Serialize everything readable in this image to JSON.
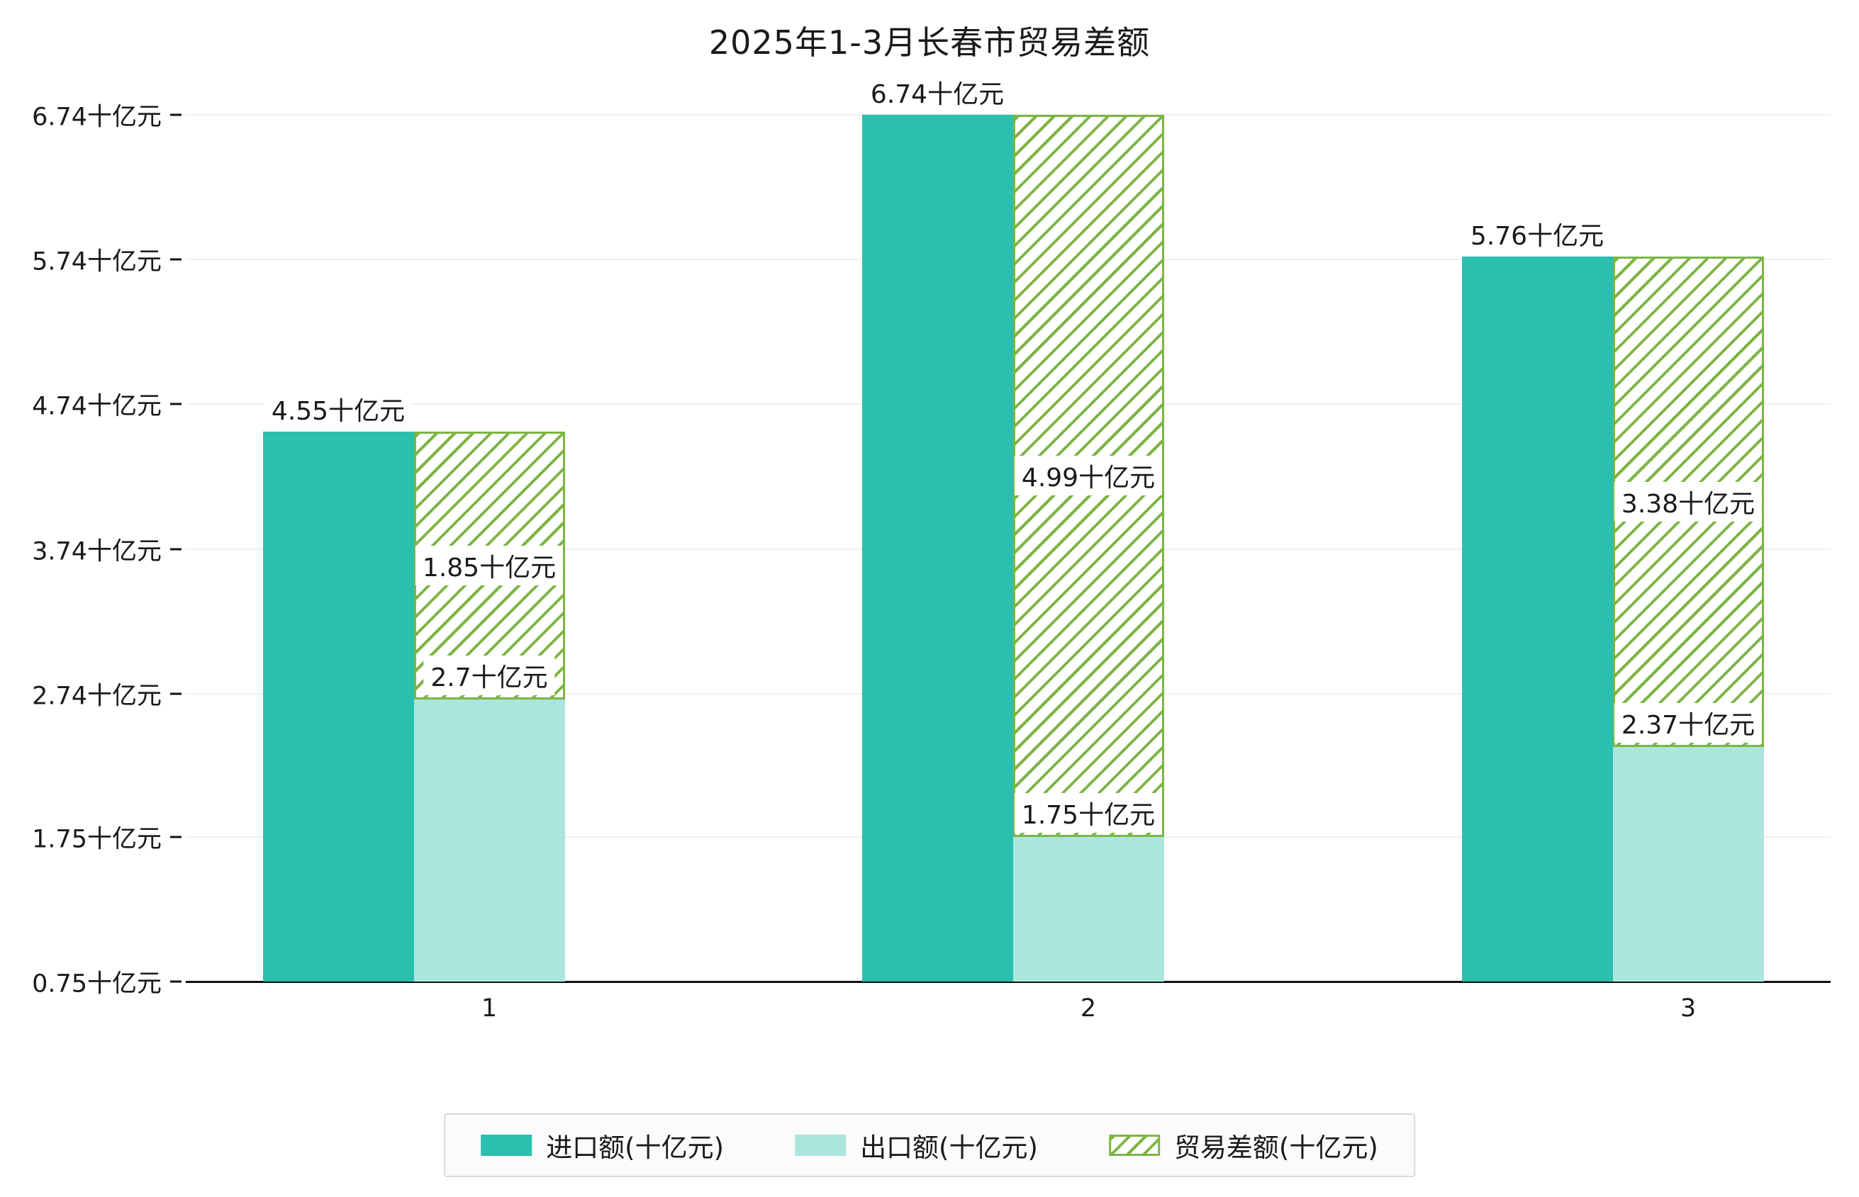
{
  "chart_data": {
    "type": "bar",
    "title": "2025年1-3月长春市贸易差额",
    "categories": [
      "1",
      "2",
      "3"
    ],
    "series": [
      {
        "name": "进口额(十亿元)",
        "values": [
          4.55,
          6.74,
          5.76
        ],
        "color": "#2bbfae"
      },
      {
        "name": "出口额(十亿元)",
        "values": [
          2.7,
          1.75,
          2.37
        ],
        "color": "#abe6dc"
      },
      {
        "name": "贸易差额(十亿元)",
        "values": [
          1.85,
          4.99,
          3.38
        ],
        "color": "#7cb544",
        "style": "hatched",
        "stacked_on": "出口额(十亿元)"
      }
    ],
    "value_labels": {
      "import": [
        "4.55十亿元",
        "6.74十亿元",
        "5.76十亿元"
      ],
      "export": [
        "2.7十亿元",
        "1.75十亿元",
        "2.37十亿元"
      ],
      "balance": [
        "1.85十亿元",
        "4.99十亿元",
        "3.38十亿元"
      ]
    },
    "y_ticks": [
      {
        "value": 0.75,
        "label": "0.75十亿元"
      },
      {
        "value": 1.75,
        "label": "1.75十亿元"
      },
      {
        "value": 2.74,
        "label": "2.74十亿元"
      },
      {
        "value": 3.74,
        "label": "3.74十亿元"
      },
      {
        "value": 4.74,
        "label": "4.74十亿元"
      },
      {
        "value": 5.74,
        "label": "5.74十亿元"
      },
      {
        "value": 6.74,
        "label": "6.74十亿元"
      }
    ],
    "ylim": [
      0.75,
      6.74
    ],
    "unit": "十亿元",
    "grid": "horizontal-faint",
    "legend_position": "bottom-center"
  }
}
